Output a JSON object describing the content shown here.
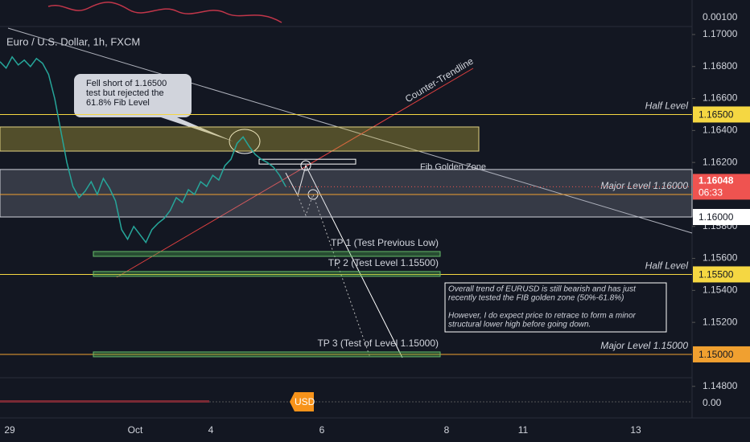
{
  "header": {
    "symbol": "Euro / U.S. Dollar, 1h, FXCM",
    "indicator_value": "0.00100",
    "bottom_value": "0.00",
    "currency": "USD"
  },
  "chart_data": {
    "type": "line",
    "color": "#26a69a",
    "ylim": [
      1.14854,
      1.1704
    ],
    "yticks": [
      {
        "value": 1.17,
        "label": "1.17000"
      },
      {
        "value": 1.168,
        "label": "1.16800"
      },
      {
        "value": 1.166,
        "label": "1.16600"
      },
      {
        "value": 1.164,
        "label": "1.16400"
      },
      {
        "value": 1.162,
        "label": "1.16200"
      },
      {
        "value": 1.158,
        "label": "1.15800"
      },
      {
        "value": 1.156,
        "label": "1.15600"
      },
      {
        "value": 1.154,
        "label": "1.15400"
      },
      {
        "value": 1.152,
        "label": "1.15200"
      },
      {
        "value": 1.148,
        "label": "1.14800"
      }
    ],
    "x_labels": [
      "29",
      "Oct",
      "4",
      "6",
      "8",
      "11",
      "13"
    ],
    "values": [
      1.1683,
      1.1679,
      1.1686,
      1.1681,
      1.1684,
      1.168,
      1.1685,
      1.1682,
      1.1675,
      1.166,
      1.164,
      1.162,
      1.1605,
      1.1598,
      1.1602,
      1.1608,
      1.16,
      1.161,
      1.1604,
      1.1596,
      1.1578,
      1.1572,
      1.158,
      1.1575,
      1.157,
      1.1578,
      1.1582,
      1.1585,
      1.159,
      1.1598,
      1.1595,
      1.1603,
      1.16,
      1.1608,
      1.1605,
      1.1612,
      1.1609,
      1.1618,
      1.1622,
      1.1632,
      1.1636,
      1.163,
      1.1625,
      1.1622,
      1.162,
      1.1617,
      1.1612,
      1.1605
    ],
    "levels": [
      {
        "value": 1.165,
        "name": "Half Level",
        "price_label": "1.16500",
        "color": "#f5d742"
      },
      {
        "value": 1.16,
        "name": "Major Level 1.16000",
        "color": "#f0a030"
      },
      {
        "value": 1.155,
        "name": "Half Level",
        "price_label": "1.15500",
        "color": "#f5d742"
      },
      {
        "value": 1.15,
        "name": "Major Level 1.15000",
        "price_label": "1.15000",
        "color": "#f0a030"
      }
    ],
    "current_price": {
      "value": 1.16048,
      "label": "1.16048",
      "countdown": "06:33"
    },
    "zone_edge_label": "1.16000",
    "zones": [
      {
        "top": 1.16422,
        "bottom": 1.16271,
        "color": "rgba(200,180,60,0.35)"
      },
      {
        "top": 1.16156,
        "bottom": 1.15859,
        "color": "rgba(160,165,180,0.25)"
      }
    ],
    "fib_box": {
      "top": 1.1622,
      "bottom": 1.1619,
      "name": "Fib Golden Zone"
    },
    "targets": [
      {
        "value": 1.15628,
        "name": "TP 1 (Test Previous Low)"
      },
      {
        "value": 1.15503,
        "name": "TP 2 (Test Level 1.15500)"
      },
      {
        "value": 1.15,
        "name": "TP 3 (Test of Level 1.15000)"
      }
    ],
    "annotations": {
      "callout": [
        "Fell short of 1.16500",
        "test but rejected the",
        "61.8% Fib Level"
      ],
      "trendline": "Counter-Trendline",
      "note": [
        "Overall trend of EURUSD is still bearish and has just",
        "recently tested the FIB golden zone (50%-61.8%)",
        "",
        "However, I do expect price to retrace to form a minor",
        "structural lower high before going down."
      ]
    }
  }
}
